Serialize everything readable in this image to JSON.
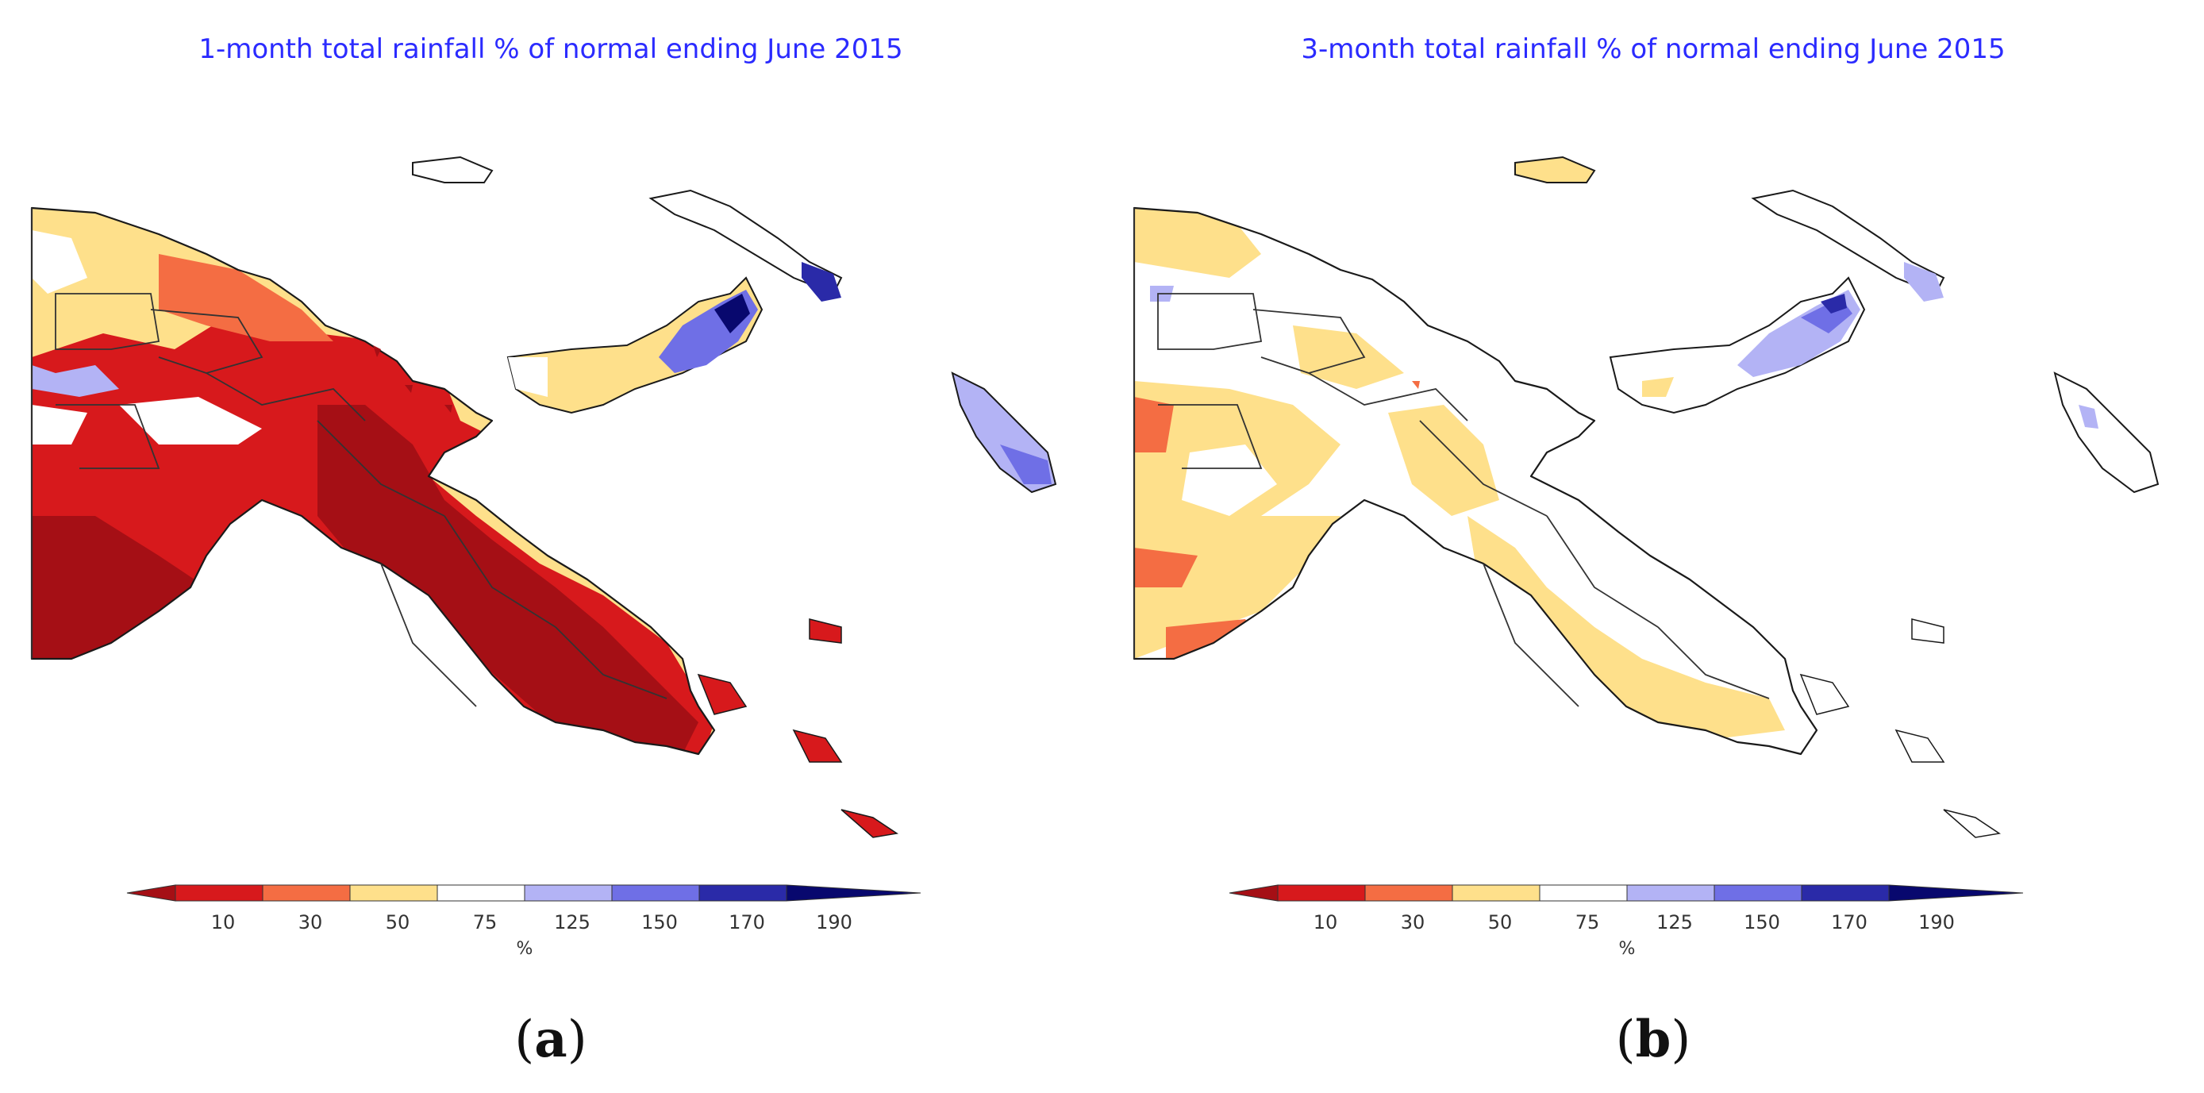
{
  "panels": [
    {
      "title": "1-month total rainfall % of normal ending June 2015",
      "label_open": "(",
      "label_letter": "a",
      "label_close": ")",
      "dominant_categories": [
        "10-30",
        "30-50",
        "50-75"
      ],
      "wet_regions": [
        "New Britain east",
        "New Ireland south"
      ]
    },
    {
      "title": "3-month total rainfall % of normal ending June 2015",
      "label_open": "(",
      "label_letter": "b",
      "label_close": ")",
      "dominant_categories": [
        "50-75",
        "75-125"
      ],
      "wet_regions": [
        "New Britain east",
        "New Ireland south"
      ]
    }
  ],
  "legend": {
    "unit": "%",
    "ticks": [
      "10",
      "30",
      "50",
      "75",
      "125",
      "150",
      "170",
      "190"
    ],
    "bins": [
      {
        "range": "<10",
        "color": "#a50f15"
      },
      {
        "range": "10-30",
        "color": "#d7191c"
      },
      {
        "range": "30-50",
        "color": "#f46d43"
      },
      {
        "range": "50-75",
        "color": "#fee08b"
      },
      {
        "range": "75-125",
        "color": "#ffffff"
      },
      {
        "range": "125-150",
        "color": "#b3b3f5"
      },
      {
        "range": "150-170",
        "color": "#6f6fe6"
      },
      {
        "range": "170-190",
        "color": "#2a2aa8"
      },
      {
        "range": ">190",
        "color": "#08086e"
      }
    ]
  },
  "colors": {
    "title": "#2b2bff",
    "outline": "#1a1a1a"
  }
}
